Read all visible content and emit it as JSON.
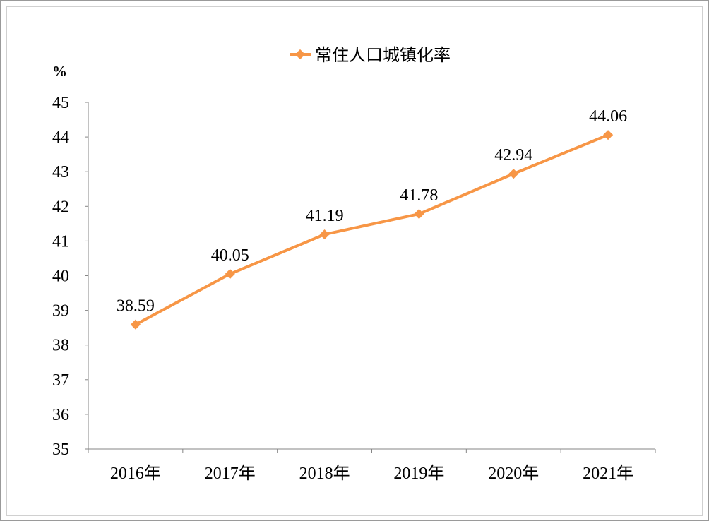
{
  "chart_data": {
    "type": "line",
    "title": "",
    "xlabel": "",
    "ylabel": "%",
    "categories": [
      "2016年",
      "2017年",
      "2018年",
      "2019年",
      "2020年",
      "2021年"
    ],
    "series": [
      {
        "name": "常住人口城镇化率",
        "values": [
          38.59,
          40.05,
          41.19,
          41.78,
          42.94,
          44.06
        ],
        "labels": [
          "38.59",
          "40.05",
          "41.19",
          "41.78",
          "42.94",
          "44.06"
        ]
      }
    ],
    "ylim": [
      35,
      45
    ],
    "yticks": [
      "35",
      "36",
      "37",
      "38",
      "39",
      "40",
      "41",
      "42",
      "43",
      "44",
      "45"
    ],
    "grid": false,
    "legend_position": "top",
    "colors": {
      "series": "#F79646",
      "axis": "#868686",
      "text": "#000000"
    },
    "marker": "diamond"
  }
}
